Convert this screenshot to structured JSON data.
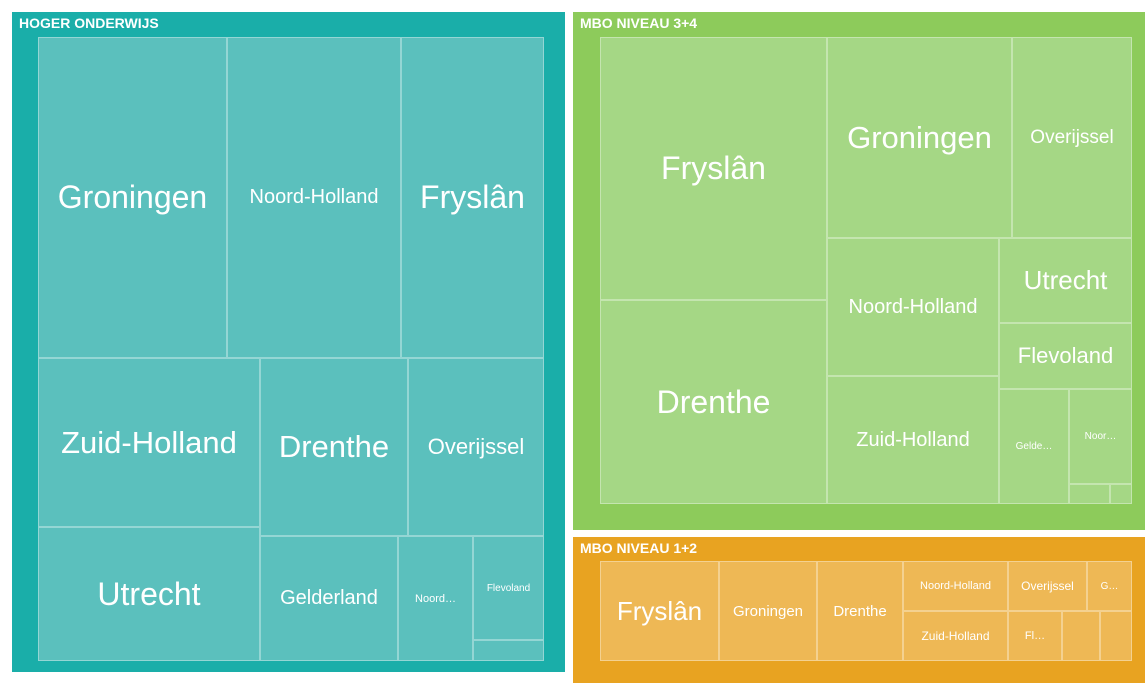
{
  "groups": [
    {
      "title": "HOGER ONDERWIJS",
      "tiles": [
        "Groningen",
        "Noord-Holland",
        "Fryslân",
        "Zuid-Holland",
        "Drenthe",
        "Overijssel",
        "Utrecht",
        "Gelderland",
        "Noord…",
        "Flevoland"
      ]
    },
    {
      "title": "MBO NIVEAU 3+4",
      "tiles": [
        "Fryslân",
        "Drenthe",
        "Groningen",
        "Overijssel",
        "Noord-Holland",
        "Utrecht",
        "Flevoland",
        "Zuid-Holland",
        "Gelde…",
        "Noor…"
      ]
    },
    {
      "title": "MBO NIVEAU 1+2",
      "tiles": [
        "Fryslân",
        "Groningen",
        "Drenthe",
        "Noord-Holland",
        "Overijssel",
        "G…",
        "Zuid-Holland",
        "Fl…"
      ]
    }
  ]
}
